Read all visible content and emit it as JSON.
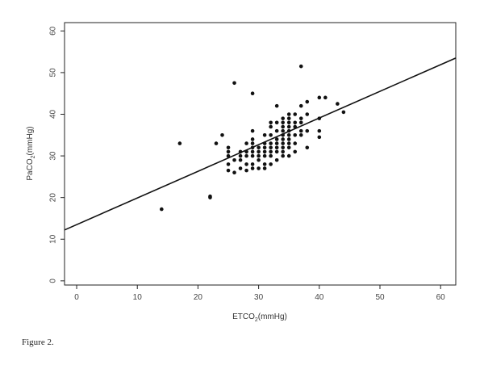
{
  "chart_data": {
    "type": "scatter",
    "title": "",
    "xlabel": "ETCO2(mmHg)",
    "ylabel": "PaCO2(mmHg)",
    "xlabel_main": "ETCO",
    "xlabel_sub": "2",
    "xlabel_unit": "(mmHg)",
    "ylabel_main": "PaCO",
    "ylabel_sub": "2",
    "ylabel_unit": "(mmHg)",
    "xlim": [
      -2,
      62.5
    ],
    "ylim": [
      -1,
      62
    ],
    "x_ticks": [
      0,
      10,
      20,
      30,
      40,
      50,
      60
    ],
    "y_ticks": [
      0,
      10,
      20,
      30,
      40,
      50,
      60
    ],
    "grid": false,
    "legend": "none",
    "regression_line": {
      "intercept": 13.5,
      "slope": 0.64
    },
    "points": [
      {
        "x": 14,
        "y": 17.2
      },
      {
        "x": 17,
        "y": 33
      },
      {
        "x": 22,
        "y": 20.3
      },
      {
        "x": 22,
        "y": 20
      },
      {
        "x": 23,
        "y": 33
      },
      {
        "x": 24,
        "y": 35
      },
      {
        "x": 25,
        "y": 26.5
      },
      {
        "x": 25,
        "y": 28
      },
      {
        "x": 25,
        "y": 30
      },
      {
        "x": 25,
        "y": 31
      },
      {
        "x": 25,
        "y": 32
      },
      {
        "x": 26,
        "y": 47.5
      },
      {
        "x": 26,
        "y": 26
      },
      {
        "x": 26,
        "y": 29
      },
      {
        "x": 27,
        "y": 27
      },
      {
        "x": 27,
        "y": 29
      },
      {
        "x": 27,
        "y": 30
      },
      {
        "x": 27,
        "y": 31
      },
      {
        "x": 28,
        "y": 26.5
      },
      {
        "x": 28,
        "y": 28
      },
      {
        "x": 28,
        "y": 30
      },
      {
        "x": 28,
        "y": 31
      },
      {
        "x": 28,
        "y": 33
      },
      {
        "x": 29,
        "y": 45
      },
      {
        "x": 29,
        "y": 27
      },
      {
        "x": 29,
        "y": 28
      },
      {
        "x": 29,
        "y": 30
      },
      {
        "x": 29,
        "y": 31
      },
      {
        "x": 29,
        "y": 32
      },
      {
        "x": 29,
        "y": 33
      },
      {
        "x": 29,
        "y": 34
      },
      {
        "x": 29,
        "y": 36
      },
      {
        "x": 30,
        "y": 27
      },
      {
        "x": 30,
        "y": 29
      },
      {
        "x": 30,
        "y": 30
      },
      {
        "x": 30,
        "y": 31
      },
      {
        "x": 30,
        "y": 32
      },
      {
        "x": 31,
        "y": 27
      },
      {
        "x": 31,
        "y": 28
      },
      {
        "x": 31,
        "y": 30
      },
      {
        "x": 31,
        "y": 31
      },
      {
        "x": 31,
        "y": 32
      },
      {
        "x": 31,
        "y": 33
      },
      {
        "x": 31,
        "y": 35
      },
      {
        "x": 32,
        "y": 28
      },
      {
        "x": 32,
        "y": 30
      },
      {
        "x": 32,
        "y": 31
      },
      {
        "x": 32,
        "y": 32
      },
      {
        "x": 32,
        "y": 33
      },
      {
        "x": 32,
        "y": 35
      },
      {
        "x": 32,
        "y": 37
      },
      {
        "x": 32,
        "y": 38
      },
      {
        "x": 33,
        "y": 42
      },
      {
        "x": 33,
        "y": 29
      },
      {
        "x": 33,
        "y": 31
      },
      {
        "x": 33,
        "y": 32
      },
      {
        "x": 33,
        "y": 33
      },
      {
        "x": 33,
        "y": 34
      },
      {
        "x": 33,
        "y": 36
      },
      {
        "x": 33,
        "y": 38
      },
      {
        "x": 34,
        "y": 30
      },
      {
        "x": 34,
        "y": 31
      },
      {
        "x": 34,
        "y": 32
      },
      {
        "x": 34,
        "y": 33
      },
      {
        "x": 34,
        "y": 34
      },
      {
        "x": 34,
        "y": 35
      },
      {
        "x": 34,
        "y": 36
      },
      {
        "x": 34,
        "y": 37
      },
      {
        "x": 34,
        "y": 38
      },
      {
        "x": 34,
        "y": 39
      },
      {
        "x": 35,
        "y": 30
      },
      {
        "x": 35,
        "y": 32
      },
      {
        "x": 35,
        "y": 33
      },
      {
        "x": 35,
        "y": 34
      },
      {
        "x": 35,
        "y": 35
      },
      {
        "x": 35,
        "y": 36
      },
      {
        "x": 35,
        "y": 37
      },
      {
        "x": 35,
        "y": 38
      },
      {
        "x": 35,
        "y": 39
      },
      {
        "x": 35,
        "y": 40
      },
      {
        "x": 36,
        "y": 31
      },
      {
        "x": 36,
        "y": 33
      },
      {
        "x": 36,
        "y": 35
      },
      {
        "x": 36,
        "y": 37
      },
      {
        "x": 36,
        "y": 38
      },
      {
        "x": 36,
        "y": 40
      },
      {
        "x": 37,
        "y": 51.5
      },
      {
        "x": 37,
        "y": 35
      },
      {
        "x": 37,
        "y": 36
      },
      {
        "x": 37,
        "y": 38
      },
      {
        "x": 37,
        "y": 39
      },
      {
        "x": 37,
        "y": 42
      },
      {
        "x": 38,
        "y": 32
      },
      {
        "x": 38,
        "y": 36
      },
      {
        "x": 38,
        "y": 40
      },
      {
        "x": 38,
        "y": 43
      },
      {
        "x": 40,
        "y": 44
      },
      {
        "x": 40,
        "y": 39
      },
      {
        "x": 40,
        "y": 36
      },
      {
        "x": 40,
        "y": 34.5
      },
      {
        "x": 41,
        "y": 44
      },
      {
        "x": 43,
        "y": 42.5
      },
      {
        "x": 44,
        "y": 40.5
      }
    ]
  },
  "caption": "Figure 2."
}
